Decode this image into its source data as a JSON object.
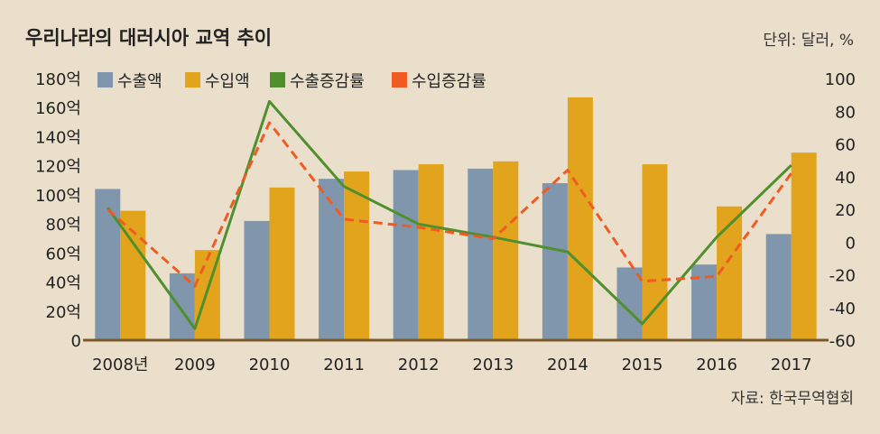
{
  "chart_data": {
    "type": "bar",
    "title": "우리나라의 대러시아 교역 추이",
    "unit": "단위: 달러, %",
    "source": "자료: 한국무역협회",
    "categories": [
      "2008년",
      "2009",
      "2010",
      "2011",
      "2012",
      "2013",
      "2014",
      "2015",
      "2016",
      "2017"
    ],
    "y_left": {
      "ylim": [
        0,
        180
      ],
      "ticks": [
        0,
        20,
        40,
        60,
        80,
        100,
        120,
        140,
        160,
        180
      ],
      "tick_labels": [
        "0",
        "20억",
        "40억",
        "60억",
        "80억",
        "100억",
        "120억",
        "140억",
        "160억",
        "180억"
      ]
    },
    "y_right": {
      "ylim": [
        -60,
        100
      ],
      "ticks": [
        -60,
        -40,
        -20,
        0,
        20,
        40,
        60,
        80,
        100
      ],
      "tick_labels": [
        "-60",
        "-40",
        "-20",
        "0",
        "20",
        "40",
        "60",
        "80",
        "100"
      ]
    },
    "series": [
      {
        "name": "수출액",
        "kind": "bar",
        "axis": "left",
        "color": "#7f96ad",
        "values": [
          104,
          46,
          82,
          111,
          117,
          118,
          108,
          50,
          52,
          73
        ]
      },
      {
        "name": "수입액",
        "kind": "bar",
        "axis": "left",
        "color": "#e2a41c",
        "values": [
          89,
          62,
          105,
          116,
          121,
          123,
          167,
          121,
          92,
          129
        ]
      },
      {
        "name": "수출증감률",
        "kind": "line",
        "axis": "right",
        "color": "#4f8f2e",
        "dash": false,
        "values": [
          21,
          -53,
          86,
          34,
          11,
          3,
          -6,
          -50,
          3,
          47
        ]
      },
      {
        "name": "수입증감률",
        "kind": "line",
        "axis": "right",
        "color": "#f05a23",
        "dash": true,
        "values": [
          20,
          -27,
          73,
          14,
          9,
          2,
          44,
          -24,
          -21,
          42
        ]
      }
    ]
  }
}
